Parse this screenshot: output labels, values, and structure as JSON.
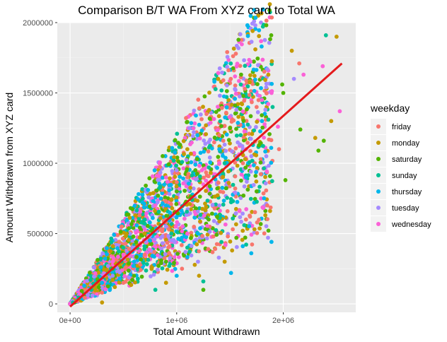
{
  "chart_data": {
    "type": "scatter",
    "title": "Comparison B/T WA From XYZ card to Total WA",
    "xlabel": "Total Amount Withdrawn",
    "ylabel": "Amount Withdrawn from XYZ card",
    "xlim": [
      -120000,
      2680000
    ],
    "ylim": [
      -60000,
      2000000
    ],
    "x_ticks": [
      {
        "value": 0,
        "label": "0e+00"
      },
      {
        "value": 1000000,
        "label": "1e+06"
      },
      {
        "value": 2000000,
        "label": "2e+06"
      }
    ],
    "y_ticks": [
      {
        "value": 0,
        "label": "0"
      },
      {
        "value": 500000,
        "label": "500000"
      },
      {
        "value": 1000000,
        "label": "1000000"
      },
      {
        "value": 1500000,
        "label": "1500000"
      },
      {
        "value": 2000000,
        "label": "2000000"
      }
    ],
    "grid": true,
    "background": "#ebebeb",
    "legend": {
      "title": "weekday",
      "position": "right",
      "entries": [
        {
          "name": "friday",
          "color": "#f8766d"
        },
        {
          "name": "monday",
          "color": "#c49a00"
        },
        {
          "name": "saturday",
          "color": "#53b400"
        },
        {
          "name": "sunday",
          "color": "#00c094"
        },
        {
          "name": "thursday",
          "color": "#00b6eb"
        },
        {
          "name": "tuesday",
          "color": "#a58aff"
        },
        {
          "name": "wednesday",
          "color": "#fb61d7"
        }
      ]
    },
    "trend_line": {
      "color": "#e41a1c",
      "x": [
        0,
        2550000
      ],
      "y": [
        -20000,
        1710000
      ]
    },
    "series": [
      {
        "name": "friday",
        "color": "#f8766d",
        "points": [
          [
            2150000,
            1710000
          ],
          [
            1960000,
            1100000
          ],
          [
            1850000,
            700000
          ],
          [
            1650000,
            600000
          ],
          [
            1480000,
            480000
          ],
          [
            1280000,
            1350000
          ],
          [
            1100000,
            900000
          ],
          [
            900000,
            600000
          ],
          [
            700000,
            350000
          ],
          [
            500000,
            150000
          ],
          [
            300000,
            80000
          ],
          [
            1050000,
            250000
          ],
          [
            1400000,
            1200000
          ],
          [
            1750000,
            1400000
          ]
        ]
      },
      {
        "name": "monday",
        "color": "#c49a00",
        "points": [
          [
            2500000,
            1900000
          ],
          [
            2080000,
            1800000
          ],
          [
            2450000,
            1300000
          ],
          [
            1860000,
            1630000
          ],
          [
            1620000,
            520000
          ],
          [
            1520000,
            380000
          ],
          [
            1450000,
            300000
          ],
          [
            1210000,
            200000
          ],
          [
            900000,
            150000
          ],
          [
            300000,
            10000
          ],
          [
            1100000,
            1100000
          ],
          [
            700000,
            500000
          ],
          [
            1580000,
            1330000
          ],
          [
            2300000,
            1180000
          ]
        ]
      },
      {
        "name": "saturday",
        "color": "#53b400",
        "points": [
          [
            2160000,
            1240000
          ],
          [
            2020000,
            880000
          ],
          [
            2330000,
            1090000
          ],
          [
            2380000,
            1160000
          ],
          [
            1990000,
            1560000
          ],
          [
            1250000,
            100000
          ],
          [
            1560000,
            470000
          ],
          [
            1300000,
            600000
          ],
          [
            900000,
            300000
          ],
          [
            600000,
            200000
          ],
          [
            1500000,
            1250000
          ],
          [
            1000000,
            800000
          ],
          [
            400000,
            250000
          ],
          [
            2000000,
            1500000
          ],
          [
            1750000,
            800000
          ]
        ]
      },
      {
        "name": "sunday",
        "color": "#00c094",
        "points": [
          [
            2400000,
            1910000
          ],
          [
            1420000,
            440000
          ],
          [
            1250000,
            160000
          ],
          [
            1100000,
            400000
          ],
          [
            800000,
            100000
          ],
          [
            1350000,
            900000
          ],
          [
            1600000,
            1200000
          ],
          [
            700000,
            600000
          ],
          [
            500000,
            400000
          ],
          [
            200000,
            100000
          ],
          [
            1900000,
            1400000
          ],
          [
            950000,
            500000
          ],
          [
            1450000,
            1000000
          ]
        ]
      },
      {
        "name": "thursday",
        "color": "#00b6eb",
        "points": [
          [
            1620000,
            410000
          ],
          [
            1700000,
            360000
          ],
          [
            1510000,
            220000
          ],
          [
            1200000,
            500000
          ],
          [
            900000,
            700000
          ],
          [
            1400000,
            1100000
          ],
          [
            1800000,
            1300000
          ],
          [
            600000,
            300000
          ],
          [
            300000,
            150000
          ],
          [
            1000000,
            200000
          ],
          [
            1650000,
            900000
          ],
          [
            750000,
            450000
          ]
        ]
      },
      {
        "name": "tuesday",
        "color": "#a58aff",
        "points": [
          [
            1840000,
            1540000
          ],
          [
            1560000,
            1380000
          ],
          [
            1550000,
            790000
          ],
          [
            1700000,
            1050000
          ],
          [
            1200000,
            300000
          ],
          [
            900000,
            550000
          ],
          [
            600000,
            400000
          ],
          [
            1400000,
            700000
          ],
          [
            1000000,
            950000
          ],
          [
            400000,
            200000
          ],
          [
            2100000,
            1600000
          ],
          [
            1300000,
            1150000
          ]
        ]
      },
      {
        "name": "wednesday",
        "color": "#fb61d7",
        "points": [
          [
            2530000,
            1370000
          ],
          [
            2370000,
            1690000
          ],
          [
            2190000,
            1630000
          ],
          [
            1890000,
            1500000
          ],
          [
            1950000,
            1260000
          ],
          [
            1400000,
            1000000
          ],
          [
            1100000,
            500000
          ],
          [
            800000,
            700000
          ],
          [
            500000,
            350000
          ],
          [
            1650000,
            1100000
          ],
          [
            1250000,
            850000
          ],
          [
            1800000,
            1450000
          ]
        ]
      }
    ]
  }
}
